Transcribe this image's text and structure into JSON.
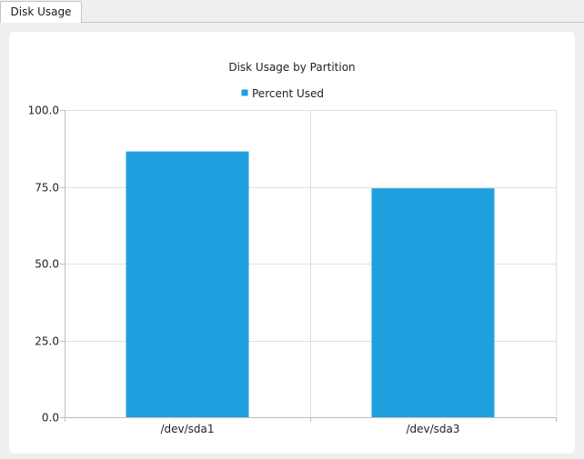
{
  "tabs": [
    {
      "label": "Disk Usage",
      "active": true
    }
  ],
  "chart_data": {
    "type": "bar",
    "title": "Disk Usage by Partition",
    "categories": [
      "/dev/sda1",
      "/dev/sda3"
    ],
    "series": [
      {
        "name": "Percent Used",
        "values": [
          86.5,
          74.5
        ],
        "color": "#209fdf"
      }
    ],
    "yticks": [
      "0.0",
      "25.0",
      "50.0",
      "75.0",
      "100.0"
    ],
    "ylim": [
      0,
      100
    ],
    "grid": true,
    "legend_position": "top"
  }
}
